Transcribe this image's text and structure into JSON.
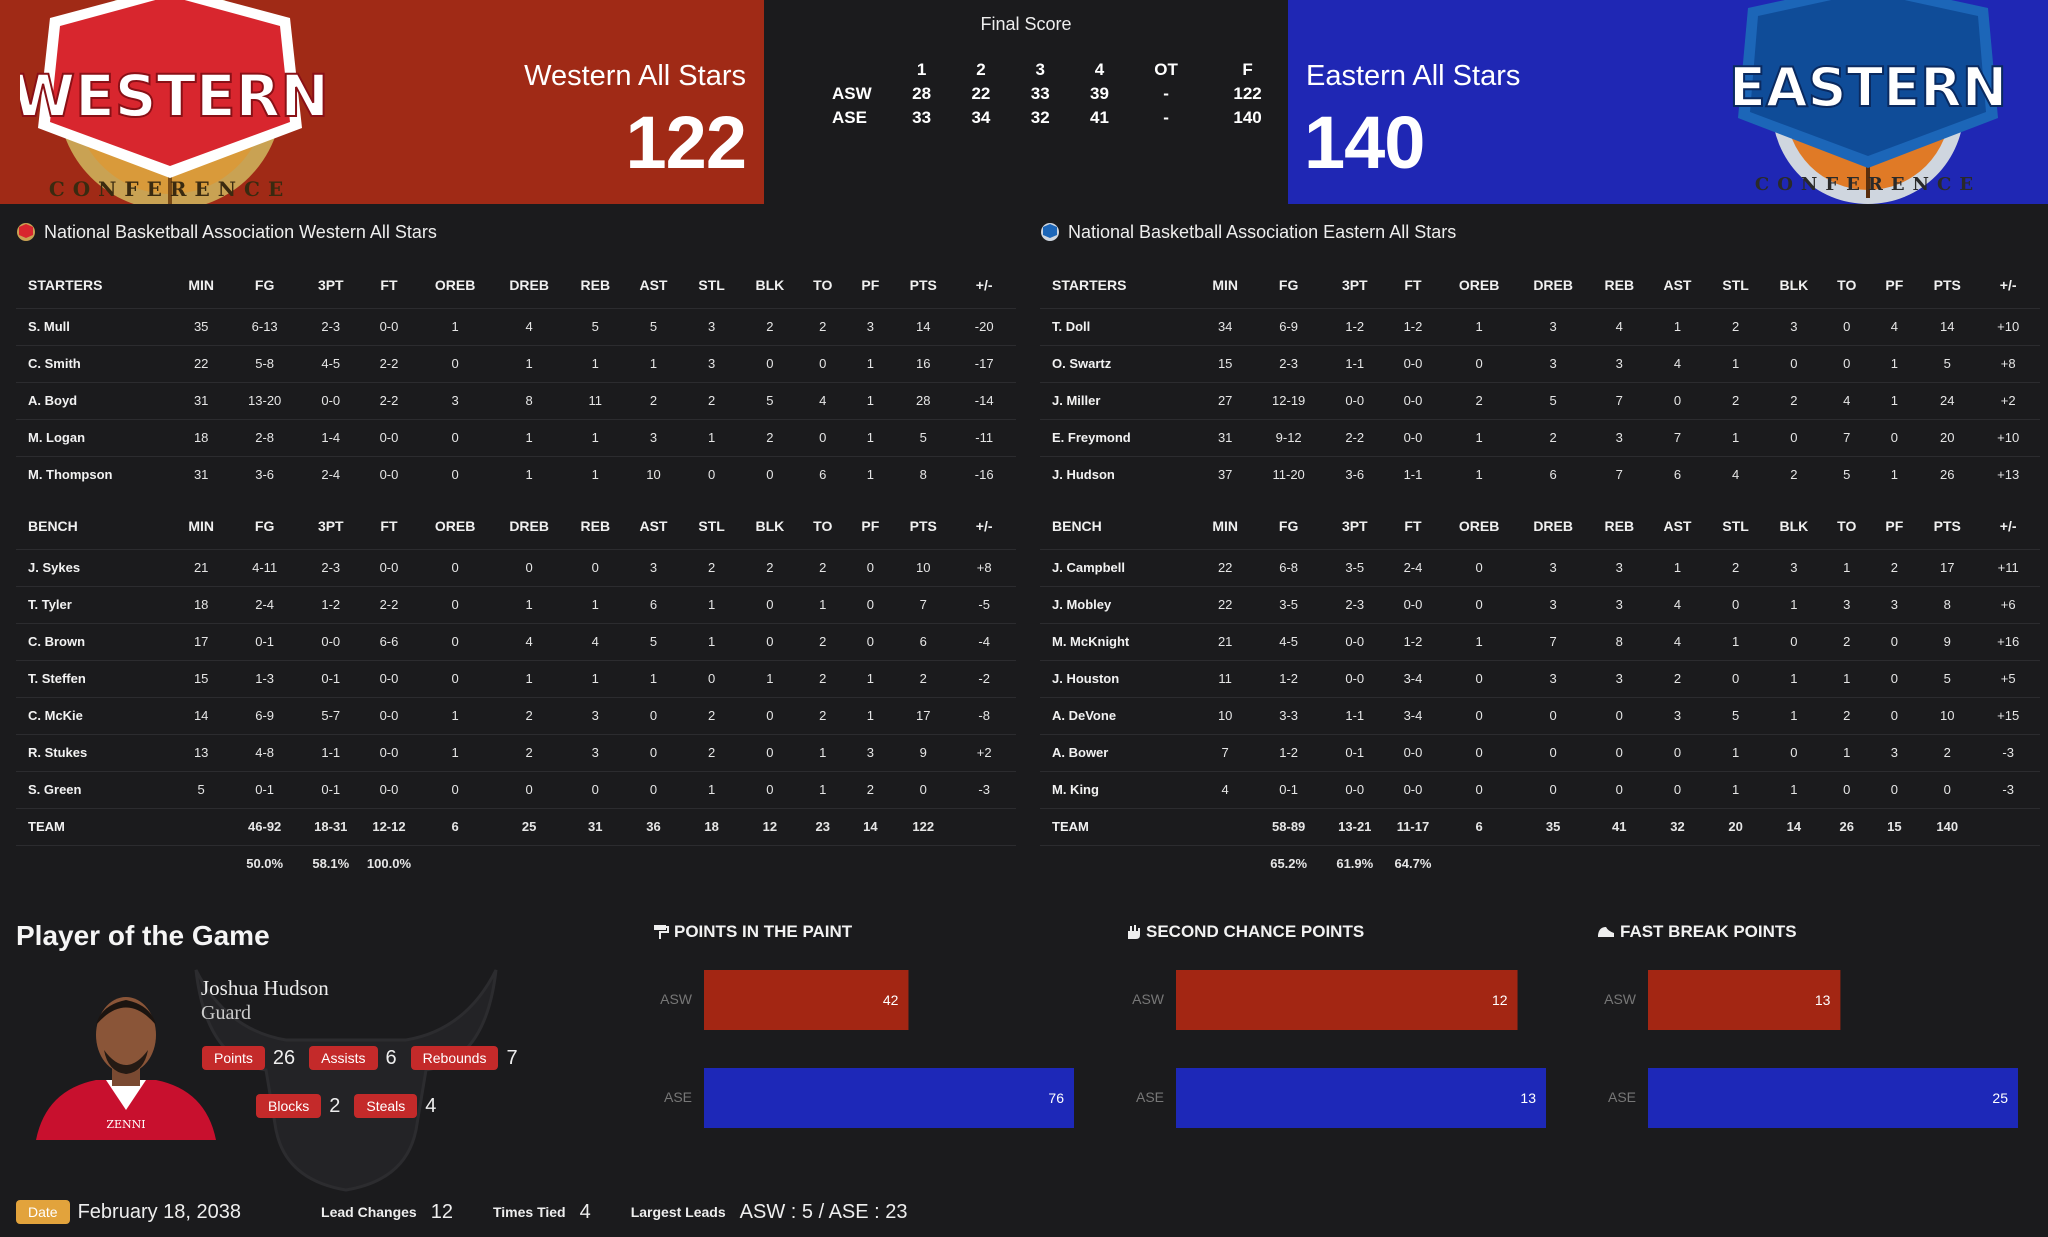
{
  "header": {
    "west": {
      "logo_text": "WESTERN",
      "logo_sub": "CONFERENCE",
      "name": "Western All Stars",
      "score": "122"
    },
    "east": {
      "logo_text": "EASTERN",
      "logo_sub": "CONFERENCE",
      "name": "Eastern All Stars",
      "score": "140"
    },
    "final_title": "Final Score",
    "linescore": {
      "headers": [
        "",
        "1",
        "2",
        "3",
        "4",
        "OT",
        "F"
      ],
      "rows": [
        [
          "ASW",
          "28",
          "22",
          "33",
          "39",
          "-",
          "122"
        ],
        [
          "ASE",
          "33",
          "34",
          "32",
          "41",
          "-",
          "140"
        ]
      ]
    }
  },
  "colors": {
    "west": "#a02a16",
    "east": "#1f27b4",
    "bar_west": "#a32613",
    "bar_east": "#1d28b8",
    "badge": "#c42a2a",
    "date_badge": "#e2a33c"
  },
  "box_west": {
    "title": "National Basketball Association Western All Stars",
    "starters_header": [
      "STARTERS",
      "MIN",
      "FG",
      "3PT",
      "FT",
      "OREB",
      "DREB",
      "REB",
      "AST",
      "STL",
      "BLK",
      "TO",
      "PF",
      "PTS",
      "+/-"
    ],
    "starters": [
      [
        "S. Mull",
        "35",
        "6-13",
        "2-3",
        "0-0",
        "1",
        "4",
        "5",
        "5",
        "3",
        "2",
        "2",
        "3",
        "14",
        "-20"
      ],
      [
        "C. Smith",
        "22",
        "5-8",
        "4-5",
        "2-2",
        "0",
        "1",
        "1",
        "1",
        "3",
        "0",
        "0",
        "1",
        "16",
        "-17"
      ],
      [
        "A. Boyd",
        "31",
        "13-20",
        "0-0",
        "2-2",
        "3",
        "8",
        "11",
        "2",
        "2",
        "5",
        "4",
        "1",
        "28",
        "-14"
      ],
      [
        "M. Logan",
        "18",
        "2-8",
        "1-4",
        "0-0",
        "0",
        "1",
        "1",
        "3",
        "1",
        "2",
        "0",
        "1",
        "5",
        "-11"
      ],
      [
        "M. Thompson",
        "31",
        "3-6",
        "2-4",
        "0-0",
        "0",
        "1",
        "1",
        "10",
        "0",
        "0",
        "6",
        "1",
        "8",
        "-16"
      ]
    ],
    "bench_header": [
      "BENCH",
      "MIN",
      "FG",
      "3PT",
      "FT",
      "OREB",
      "DREB",
      "REB",
      "AST",
      "STL",
      "BLK",
      "TO",
      "PF",
      "PTS",
      "+/-"
    ],
    "bench": [
      [
        "J. Sykes",
        "21",
        "4-11",
        "2-3",
        "0-0",
        "0",
        "0",
        "0",
        "3",
        "2",
        "2",
        "2",
        "0",
        "10",
        "+8"
      ],
      [
        "T. Tyler",
        "18",
        "2-4",
        "1-2",
        "2-2",
        "0",
        "1",
        "1",
        "6",
        "1",
        "0",
        "1",
        "0",
        "7",
        "-5"
      ],
      [
        "C. Brown",
        "17",
        "0-1",
        "0-0",
        "6-6",
        "0",
        "4",
        "4",
        "5",
        "1",
        "0",
        "2",
        "0",
        "6",
        "-4"
      ],
      [
        "T. Steffen",
        "15",
        "1-3",
        "0-1",
        "0-0",
        "0",
        "1",
        "1",
        "1",
        "0",
        "1",
        "2",
        "1",
        "2",
        "-2"
      ],
      [
        "C. McKie",
        "14",
        "6-9",
        "5-7",
        "0-0",
        "1",
        "2",
        "3",
        "0",
        "2",
        "0",
        "2",
        "1",
        "17",
        "-8"
      ],
      [
        "R. Stukes",
        "13",
        "4-8",
        "1-1",
        "0-0",
        "1",
        "2",
        "3",
        "0",
        "2",
        "0",
        "1",
        "3",
        "9",
        "+2"
      ],
      [
        "S. Green",
        "5",
        "0-1",
        "0-1",
        "0-0",
        "0",
        "0",
        "0",
        "0",
        "1",
        "0",
        "1",
        "2",
        "0",
        "-3"
      ]
    ],
    "team": [
      "TEAM",
      "",
      "46-92",
      "18-31",
      "12-12",
      "6",
      "25",
      "31",
      "36",
      "18",
      "12",
      "23",
      "14",
      "122",
      ""
    ],
    "pct": [
      "",
      "",
      "50.0%",
      "58.1%",
      "100.0%",
      "",
      "",
      "",
      "",
      "",
      "",
      "",
      "",
      "",
      ""
    ]
  },
  "box_east": {
    "title": "National Basketball Association Eastern All Stars",
    "starters_header": [
      "STARTERS",
      "MIN",
      "FG",
      "3PT",
      "FT",
      "OREB",
      "DREB",
      "REB",
      "AST",
      "STL",
      "BLK",
      "TO",
      "PF",
      "PTS",
      "+/-"
    ],
    "starters": [
      [
        "T. Doll",
        "34",
        "6-9",
        "1-2",
        "1-2",
        "1",
        "3",
        "4",
        "1",
        "2",
        "3",
        "0",
        "4",
        "14",
        "+10"
      ],
      [
        "O. Swartz",
        "15",
        "2-3",
        "1-1",
        "0-0",
        "0",
        "3",
        "3",
        "4",
        "1",
        "0",
        "0",
        "1",
        "5",
        "+8"
      ],
      [
        "J. Miller",
        "27",
        "12-19",
        "0-0",
        "0-0",
        "2",
        "5",
        "7",
        "0",
        "2",
        "2",
        "4",
        "1",
        "24",
        "+2"
      ],
      [
        "E. Freymond",
        "31",
        "9-12",
        "2-2",
        "0-0",
        "1",
        "2",
        "3",
        "7",
        "1",
        "0",
        "7",
        "0",
        "20",
        "+10"
      ],
      [
        "J. Hudson",
        "37",
        "11-20",
        "3-6",
        "1-1",
        "1",
        "6",
        "7",
        "6",
        "4",
        "2",
        "5",
        "1",
        "26",
        "+13"
      ]
    ],
    "bench_header": [
      "BENCH",
      "MIN",
      "FG",
      "3PT",
      "FT",
      "OREB",
      "DREB",
      "REB",
      "AST",
      "STL",
      "BLK",
      "TO",
      "PF",
      "PTS",
      "+/-"
    ],
    "bench": [
      [
        "J. Campbell",
        "22",
        "6-8",
        "3-5",
        "2-4",
        "0",
        "3",
        "3",
        "1",
        "2",
        "3",
        "1",
        "2",
        "17",
        "+11"
      ],
      [
        "J. Mobley",
        "22",
        "3-5",
        "2-3",
        "0-0",
        "0",
        "3",
        "3",
        "4",
        "0",
        "1",
        "3",
        "3",
        "8",
        "+6"
      ],
      [
        "M. McKnight",
        "21",
        "4-5",
        "0-0",
        "1-2",
        "1",
        "7",
        "8",
        "4",
        "1",
        "0",
        "2",
        "0",
        "9",
        "+16"
      ],
      [
        "J. Houston",
        "11",
        "1-2",
        "0-0",
        "3-4",
        "0",
        "3",
        "3",
        "2",
        "0",
        "1",
        "1",
        "0",
        "5",
        "+5"
      ],
      [
        "A. DeVone",
        "10",
        "3-3",
        "1-1",
        "3-4",
        "0",
        "0",
        "0",
        "3",
        "5",
        "1",
        "2",
        "0",
        "10",
        "+15"
      ],
      [
        "A. Bower",
        "7",
        "1-2",
        "0-1",
        "0-0",
        "0",
        "0",
        "0",
        "0",
        "1",
        "0",
        "1",
        "3",
        "2",
        "-3"
      ],
      [
        "M. King",
        "4",
        "0-1",
        "0-0",
        "0-0",
        "0",
        "0",
        "0",
        "0",
        "1",
        "1",
        "0",
        "0",
        "0",
        "-3"
      ]
    ],
    "team": [
      "TEAM",
      "",
      "58-89",
      "13-21",
      "11-17",
      "6",
      "35",
      "41",
      "32",
      "20",
      "14",
      "26",
      "15",
      "140",
      ""
    ],
    "pct": [
      "",
      "",
      "65.2%",
      "61.9%",
      "64.7%",
      "",
      "",
      "",
      "",
      "",
      "",
      "",
      "",
      "",
      ""
    ]
  },
  "potg": {
    "title": "Player of the Game",
    "name": "Joshua Hudson",
    "position": "Guard",
    "jersey_text": "ZENNI",
    "stats": [
      {
        "label": "Points",
        "value": "26"
      },
      {
        "label": "Assists",
        "value": "6"
      },
      {
        "label": "Rebounds",
        "value": "7"
      },
      {
        "label": "Blocks",
        "value": "2"
      },
      {
        "label": "Steals",
        "value": "4"
      }
    ]
  },
  "chart_data": [
    {
      "type": "bar",
      "title": "POINTS IN THE PAINT",
      "categories": [
        "ASW",
        "ASE"
      ],
      "values": [
        42,
        76
      ],
      "xlim": [
        0,
        76
      ]
    },
    {
      "type": "bar",
      "title": "SECOND CHANCE POINTS",
      "categories": [
        "ASW",
        "ASE"
      ],
      "values": [
        12,
        13
      ],
      "xlim": [
        0,
        13
      ]
    },
    {
      "type": "bar",
      "title": "FAST BREAK POINTS",
      "categories": [
        "ASW",
        "ASE"
      ],
      "values": [
        13,
        25
      ],
      "xlim": [
        0,
        25
      ]
    }
  ],
  "footer": {
    "date_label": "Date",
    "date": "February 18, 2038",
    "lead_changes_label": "Lead Changes",
    "lead_changes": "12",
    "times_tied_label": "Times Tied",
    "times_tied": "4",
    "largest_leads_label": "Largest Leads",
    "largest_leads": "ASW : 5 / ASE : 23"
  }
}
